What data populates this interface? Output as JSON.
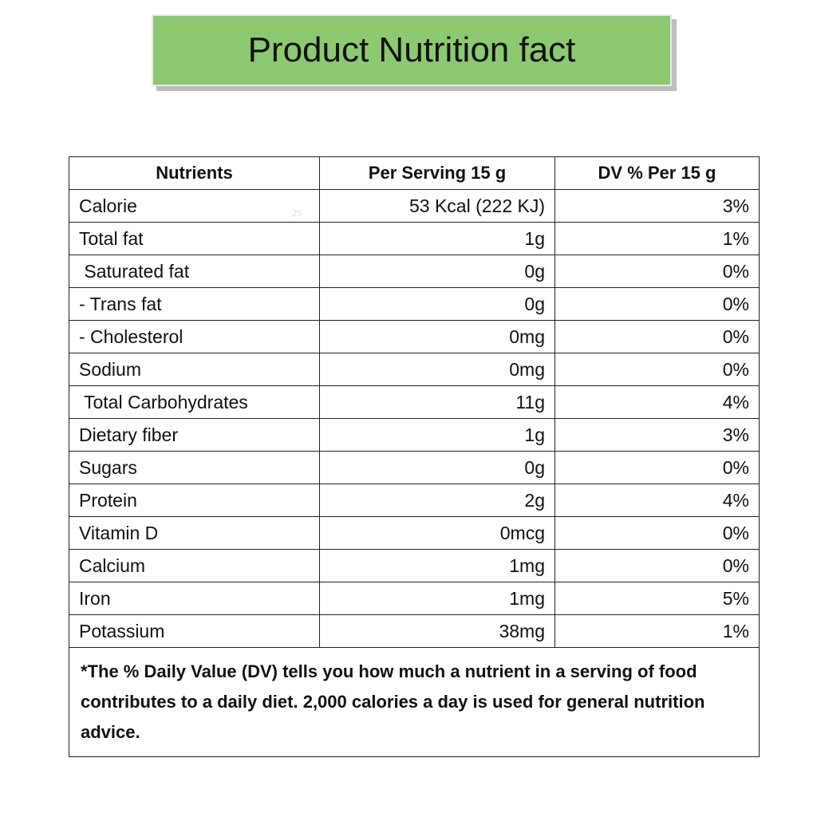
{
  "header": {
    "title": "Product Nutrition fact"
  },
  "table": {
    "columns": [
      "Nutrients",
      "Per Serving 15 g",
      "DV % Per 15 g"
    ],
    "rows": [
      [
        "Calorie",
        "53 Kcal (222 KJ)",
        "3%"
      ],
      [
        "Total fat",
        "1g",
        "1%"
      ],
      [
        " Saturated fat",
        "0g",
        "0%"
      ],
      [
        "- Trans fat",
        "0g",
        "0%"
      ],
      [
        "- Cholesterol",
        "0mg",
        "0%"
      ],
      [
        "Sodium",
        "0mg",
        "0%"
      ],
      [
        " Total Carbohydrates",
        "11g",
        "4%"
      ],
      [
        "Dietary fiber",
        "1g",
        "3%"
      ],
      [
        "Sugars",
        "0g",
        "0%"
      ],
      [
        "Protein",
        "2g",
        "4%"
      ],
      [
        "Vitamin D",
        "0mcg",
        "0%"
      ],
      [
        "Calcium",
        "1mg",
        "0%"
      ],
      [
        "Iron",
        "1mg",
        "5%"
      ],
      [
        "Potassium",
        "38mg",
        "1%"
      ]
    ],
    "faint_mark": "25",
    "footnote": "*The % Daily Value (DV) tells you how much a nutrient in a serving of food contributes to a daily diet. 2,000 calories a day is used for general nutrition advice."
  }
}
